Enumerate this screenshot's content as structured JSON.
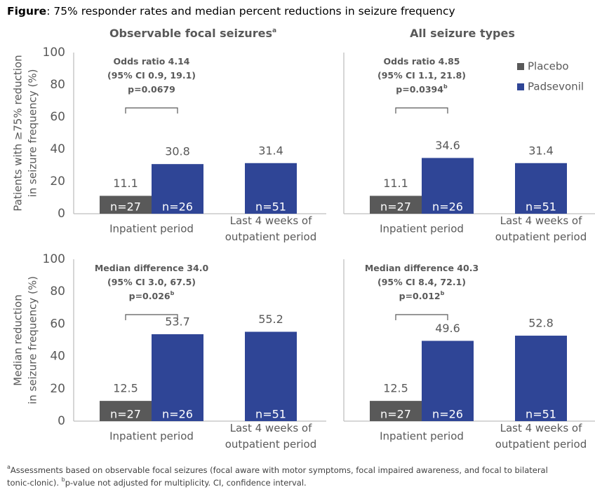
{
  "figure": {
    "label": "Figure",
    "title": ": 75% responder rates and median percent reductions in seizure frequency",
    "footnote": [
      [
        {
          "text": "a",
          "sup": true
        },
        {
          "text": "Assessments based on observable focal seizures (focal aware with motor symptoms, focal impaired awareness, and focal to bilateral"
        }
      ],
      [
        {
          "text": "tonic-clonic). "
        },
        {
          "text": "b",
          "sup": true
        },
        {
          "text": "p-value not adjusted for multiplicity. CI, confidence interval."
        }
      ]
    ]
  },
  "chart_data": [
    {
      "type": "bar",
      "column_title": "Observable focal seizures",
      "column_title_sup": "a",
      "ylabel": [
        "Patients with ≥75% reduction",
        "in seizure frequency (%)"
      ],
      "categories": [
        [
          "Inpatient period"
        ],
        [
          "Last 4 weeks of",
          "outpatient period"
        ]
      ],
      "series": [
        {
          "color": "#595959",
          "values": [
            11.1,
            null
          ],
          "n_labels": [
            "n=27",
            null
          ]
        },
        {
          "color": "#2f4596",
          "values": [
            30.8,
            31.4
          ],
          "n_labels": [
            "n=26",
            "n=51"
          ]
        }
      ],
      "annotation": {
        "lines": [
          "Odds ratio 4.14",
          "(95% CI 0.9, 19.1)",
          "p=0.0679"
        ]
      },
      "ylim": [
        0,
        100
      ],
      "yticks": [
        0,
        20,
        40,
        60,
        80,
        100
      ]
    },
    {
      "type": "bar",
      "column_title": "All seizure types",
      "categories": [
        [
          "Inpatient period"
        ],
        [
          "Last 4 weeks of",
          "outpatient period"
        ]
      ],
      "series": [
        {
          "name": "Placebo",
          "color": "#595959",
          "values": [
            11.1,
            null
          ],
          "n_labels": [
            "n=27",
            null
          ]
        },
        {
          "name": "Padsevonil",
          "color": "#2f4596",
          "values": [
            34.6,
            31.4
          ],
          "n_labels": [
            "n=26",
            "n=51"
          ]
        }
      ],
      "annotation": {
        "lines": [
          "Odds ratio 4.85",
          "(95% CI 1.1, 21.8)",
          "p=0.0394"
        ],
        "line_sup": "b"
      },
      "legend": "upper right",
      "ylim": [
        0,
        100
      ]
    },
    {
      "type": "bar",
      "ylabel": [
        "Median reduction",
        "in seizure frequency (%)"
      ],
      "categories": [
        [
          "Inpatient period"
        ],
        [
          "Last 4 weeks of",
          "outpatient period"
        ]
      ],
      "series": [
        {
          "color": "#595959",
          "values": [
            12.5,
            null
          ],
          "n_labels": [
            "n=27",
            null
          ]
        },
        {
          "color": "#2f4596",
          "values": [
            53.7,
            55.2
          ],
          "n_labels": [
            "n=26",
            "n=51"
          ]
        }
      ],
      "annotation": {
        "lines": [
          "Median difference 34.0",
          "(95% CI 3.0, 67.5)",
          "p=0.026"
        ],
        "line_sup": "b"
      },
      "ylim": [
        0,
        100
      ],
      "yticks": [
        0,
        20,
        40,
        60,
        80,
        100
      ]
    },
    {
      "type": "bar",
      "categories": [
        [
          "Inpatient period"
        ],
        [
          "Last 4 weeks of",
          "outpatient period"
        ]
      ],
      "series": [
        {
          "color": "#595959",
          "values": [
            12.5,
            null
          ],
          "n_labels": [
            "n=27",
            null
          ]
        },
        {
          "color": "#2f4596",
          "values": [
            49.6,
            52.8
          ],
          "n_labels": [
            "n=26",
            "n=51"
          ]
        }
      ],
      "annotation": {
        "lines": [
          "Median difference 40.3",
          "(95% CI 8.4, 72.1)",
          "p=0.012"
        ],
        "line_sup": "b"
      },
      "ylim": [
        0,
        100
      ]
    }
  ]
}
